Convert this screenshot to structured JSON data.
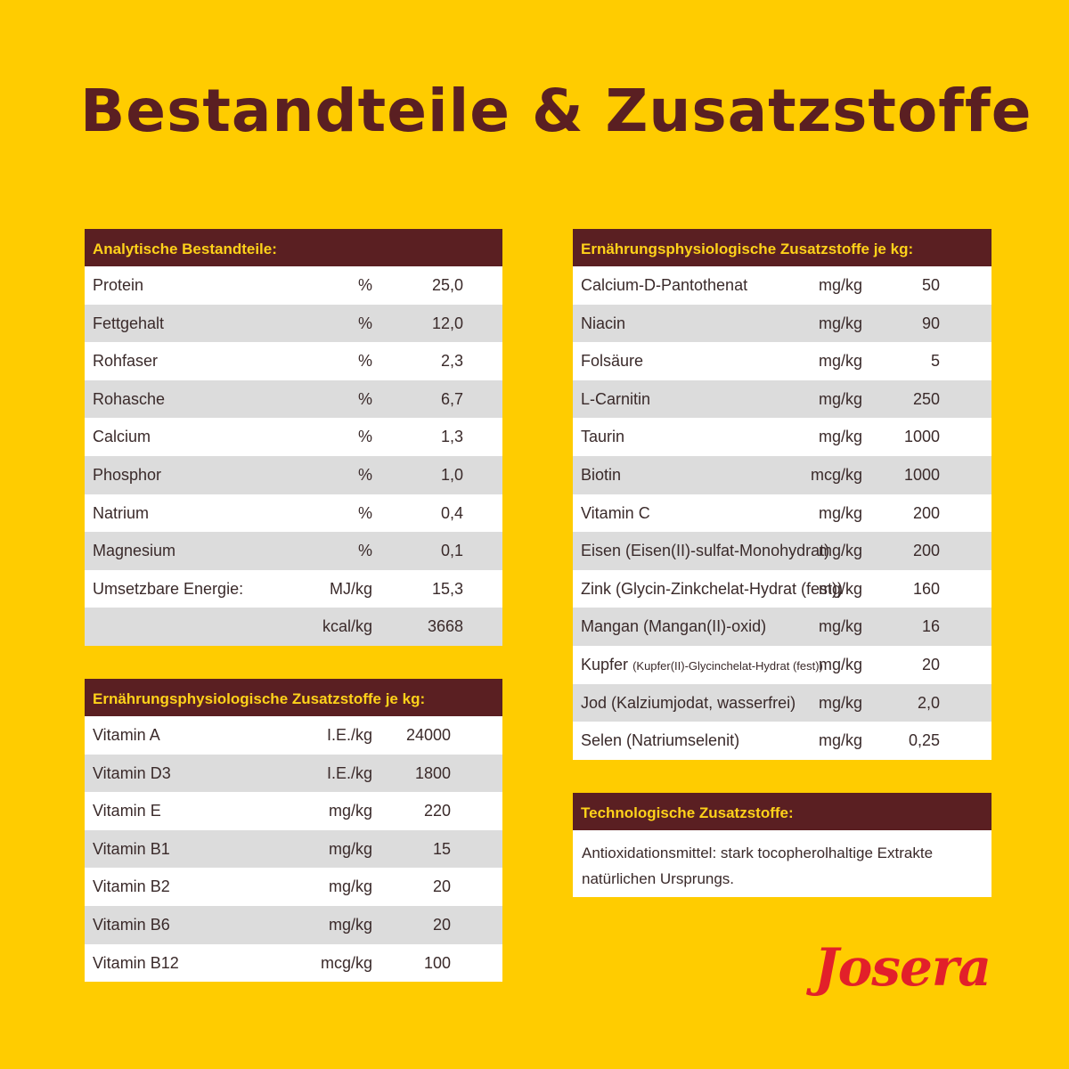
{
  "title": "Bestandteile & Zusatzstoffe",
  "analytic": {
    "heading": "Analytische Bestandteile:",
    "rows": [
      {
        "name": "Protein",
        "unit": "%",
        "value": "25,0"
      },
      {
        "name": "Fettgehalt",
        "unit": "%",
        "value": "12,0"
      },
      {
        "name": "Rohfaser",
        "unit": "%",
        "value": "2,3"
      },
      {
        "name": "Rohasche",
        "unit": "%",
        "value": "6,7"
      },
      {
        "name": "Calcium",
        "unit": "%",
        "value": "1,3"
      },
      {
        "name": "Phosphor",
        "unit": "%",
        "value": "1,0"
      },
      {
        "name": "Natrium",
        "unit": "%",
        "value": "0,4"
      },
      {
        "name": "Magnesium",
        "unit": "%",
        "value": "0,1"
      },
      {
        "name": "Umsetzbare Energie:",
        "unit": "MJ/kg",
        "value": "15,3"
      },
      {
        "name": "",
        "unit": "kcal/kg",
        "value": "3668"
      }
    ]
  },
  "vitamins": {
    "heading": "Ernährungsphysiologische Zusatzstoffe je kg:",
    "rows": [
      {
        "name": "Vitamin A",
        "unit": "I.E./kg",
        "value": "24000"
      },
      {
        "name": "Vitamin D3",
        "unit": "I.E./kg",
        "value": "1800"
      },
      {
        "name": "Vitamin E",
        "unit": "mg/kg",
        "value": "220"
      },
      {
        "name": "Vitamin B1",
        "unit": "mg/kg",
        "value": "15"
      },
      {
        "name": "Vitamin B2",
        "unit": "mg/kg",
        "value": "20"
      },
      {
        "name": "Vitamin B6",
        "unit": "mg/kg",
        "value": "20"
      },
      {
        "name": "Vitamin B12",
        "unit": "mcg/kg",
        "value": "100"
      }
    ]
  },
  "nutri": {
    "heading": "Ernährungsphysiologische Zusatzstoffe je kg:",
    "rows": [
      {
        "name": "Calcium-D-Pantothenat",
        "unit": "mg/kg",
        "value": "50"
      },
      {
        "name": "Niacin",
        "unit": "mg/kg",
        "value": "90"
      },
      {
        "name": "Folsäure",
        "unit": "mg/kg",
        "value": "5"
      },
      {
        "name": "L-Carnitin",
        "unit": "mg/kg",
        "value": "250"
      },
      {
        "name": "Taurin",
        "unit": "mg/kg",
        "value": "1000"
      },
      {
        "name": "Biotin",
        "unit": "mcg/kg",
        "value": "1000"
      },
      {
        "name": "Vitamin C",
        "unit": "mg/kg",
        "value": "200"
      },
      {
        "name": "Eisen (Eisen(II)-sulfat-Monohydrat)",
        "unit": "mg/kg",
        "value": "200"
      },
      {
        "name": "Zink (Glycin-Zinkchelat-Hydrat (fest))",
        "unit": "mg/kg",
        "value": "160"
      },
      {
        "name": "Mangan (Mangan(II)-oxid)",
        "unit": "mg/kg",
        "value": "16"
      },
      {
        "name": "Kupfer",
        "name_small": "(Kupfer(II)-Glycinchelat-Hydrat (fest))",
        "unit": "mg/kg",
        "value": "20"
      },
      {
        "name": "Jod (Kalziumjodat, wasserfrei)",
        "unit": "mg/kg",
        "value": "2,0"
      },
      {
        "name": "Selen (Natriumselenit)",
        "unit": "mg/kg",
        "value": "0,25"
      }
    ]
  },
  "tech": {
    "heading": "Technologische Zusatzstoffe:",
    "text": "Antioxidationsmittel: stark tocopherolhaltige Extrakte natürlichen Ursprungs."
  },
  "brand": "Josera",
  "colors": {
    "background": "#ffcc00",
    "header": "#5a1f22",
    "header_text": "#ffd21a",
    "alt_row": "#dcdcdc",
    "logo": "#e2202a"
  }
}
